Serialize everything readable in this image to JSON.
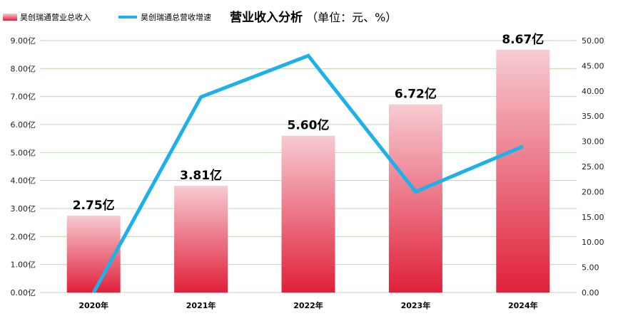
{
  "chart_data": {
    "type": "bar",
    "title": "营业收入分析",
    "subtitle": "（单位：元、%）",
    "categories": [
      "2020年",
      "2021年",
      "2022年",
      "2023年",
      "2024年"
    ],
    "series": [
      {
        "name": "昊创瑞通营业总收入",
        "type": "bar",
        "axis": "left",
        "values": [
          2.75,
          3.81,
          5.6,
          6.72,
          8.67
        ],
        "labels": [
          "2.75亿",
          "3.81亿",
          "5.60亿",
          "6.72亿",
          "8.67亿"
        ],
        "color": "#e02a40"
      },
      {
        "name": "昊创瑞通总营收增速",
        "type": "line",
        "axis": "right",
        "values": [
          0.0,
          38.8,
          47.0,
          20.0,
          29.0
        ],
        "color": "#1eb0ea"
      }
    ],
    "y_left": {
      "min": 0,
      "max": 9,
      "ticks": [
        "0.00亿",
        "1.00亿",
        "2.00亿",
        "3.00亿",
        "4.00亿",
        "5.00亿",
        "6.00亿",
        "7.00亿",
        "8.00亿",
        "9.00亿"
      ]
    },
    "y_right": {
      "min": 0,
      "max": 50,
      "ticks": [
        "0.00",
        "5.00",
        "10.00",
        "15.00",
        "20.00",
        "25.00",
        "30.00",
        "35.00",
        "40.00",
        "45.00",
        "50.00"
      ]
    },
    "grid": true,
    "grid_color": "#b9dcb3",
    "legend_position": "top-left"
  }
}
